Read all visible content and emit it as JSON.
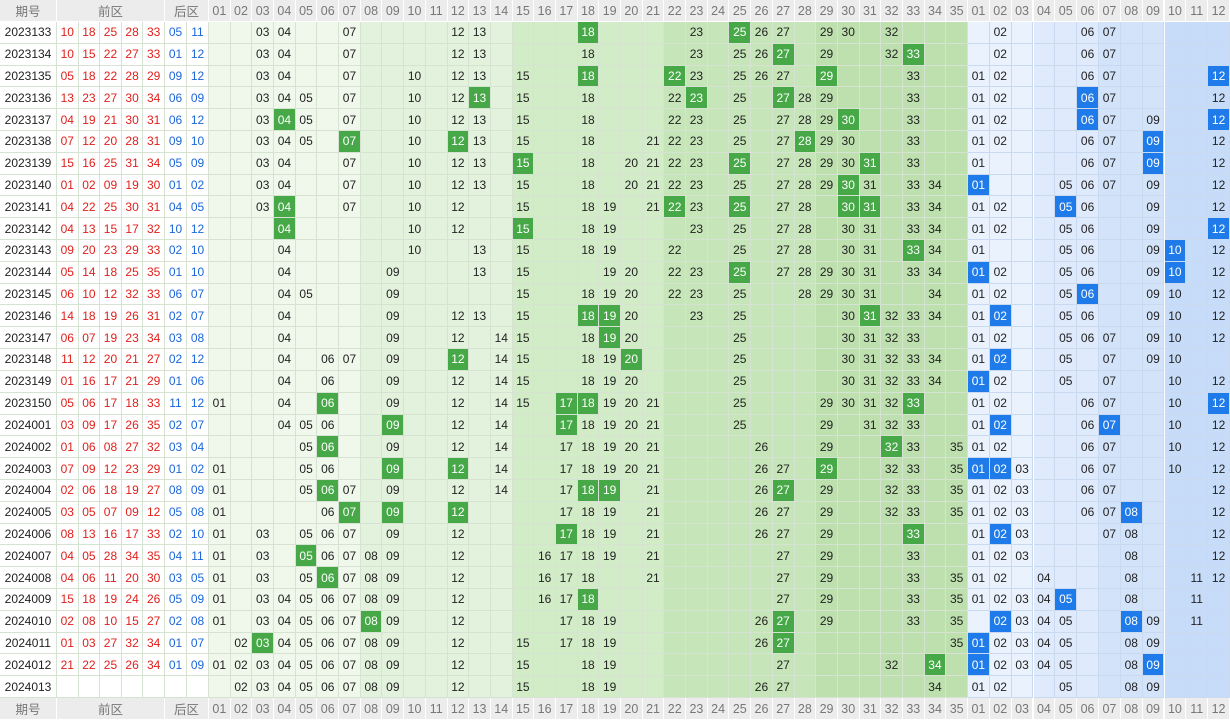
{
  "header": {
    "issue": "期号",
    "front": "前区",
    "back": "后区",
    "front_columns": [
      "01",
      "02",
      "03",
      "04",
      "05",
      "06",
      "07",
      "08",
      "09",
      "10",
      "11",
      "12",
      "13",
      "14",
      "15",
      "16",
      "17",
      "18",
      "19",
      "20",
      "21",
      "22",
      "23",
      "24",
      "25",
      "26",
      "27",
      "28",
      "29",
      "30",
      "31",
      "32",
      "33",
      "34",
      "35"
    ],
    "back_columns": [
      "01",
      "02",
      "03",
      "04",
      "05",
      "06",
      "07",
      "08",
      "09",
      "10",
      "11",
      "12"
    ]
  },
  "rows": [
    {
      "issue": "2023133",
      "front": [
        "10",
        "18",
        "25",
        "28",
        "33"
      ],
      "back": [
        "05",
        "11"
      ],
      "front_trend": [
        "03",
        "04",
        "07",
        "12",
        "13",
        "18",
        "23",
        "25",
        "26",
        "27",
        "29",
        "30",
        "32"
      ],
      "back_trend": [
        "02",
        "06",
        "07"
      ]
    },
    {
      "issue": "2023134",
      "front": [
        "10",
        "15",
        "22",
        "27",
        "33"
      ],
      "back": [
        "01",
        "12"
      ],
      "front_trend": [
        "03",
        "04",
        "07",
        "12",
        "13",
        "18",
        "23",
        "25",
        "26",
        "27",
        "29",
        "32",
        "33"
      ],
      "back_trend": [
        "02",
        "06",
        "07"
      ]
    },
    {
      "issue": "2023135",
      "front": [
        "05",
        "18",
        "22",
        "28",
        "29"
      ],
      "back": [
        "09",
        "12"
      ],
      "front_trend": [
        "03",
        "04",
        "07",
        "10",
        "12",
        "13",
        "15",
        "18",
        "22",
        "23",
        "25",
        "26",
        "27",
        "29",
        "33"
      ],
      "back_trend": [
        "01",
        "02",
        "06",
        "07",
        "12"
      ]
    },
    {
      "issue": "2023136",
      "front": [
        "13",
        "23",
        "27",
        "30",
        "34"
      ],
      "back": [
        "06",
        "09"
      ],
      "front_trend": [
        "03",
        "04",
        "05",
        "07",
        "10",
        "12",
        "13",
        "15",
        "18",
        "22",
        "23",
        "25",
        "27",
        "28",
        "29",
        "33"
      ],
      "back_trend": [
        "01",
        "02",
        "06",
        "07",
        "12"
      ]
    },
    {
      "issue": "2023137",
      "front": [
        "04",
        "19",
        "21",
        "30",
        "31"
      ],
      "back": [
        "06",
        "12"
      ],
      "front_trend": [
        "03",
        "04",
        "05",
        "07",
        "10",
        "12",
        "13",
        "15",
        "18",
        "22",
        "23",
        "25",
        "27",
        "28",
        "29",
        "30",
        "33"
      ],
      "back_trend": [
        "01",
        "02",
        "06",
        "07",
        "09",
        "12"
      ]
    },
    {
      "issue": "2023138",
      "front": [
        "07",
        "12",
        "20",
        "28",
        "31"
      ],
      "back": [
        "09",
        "10"
      ],
      "front_trend": [
        "03",
        "04",
        "05",
        "07",
        "10",
        "12",
        "13",
        "15",
        "18",
        "21",
        "22",
        "23",
        "25",
        "27",
        "28",
        "29",
        "30",
        "33"
      ],
      "back_trend": [
        "01",
        "02",
        "06",
        "07",
        "09",
        "12"
      ]
    },
    {
      "issue": "2023139",
      "front": [
        "15",
        "16",
        "25",
        "31",
        "34"
      ],
      "back": [
        "05",
        "09"
      ],
      "front_trend": [
        "03",
        "04",
        "07",
        "10",
        "12",
        "13",
        "15",
        "18",
        "20",
        "21",
        "22",
        "23",
        "25",
        "27",
        "28",
        "29",
        "30",
        "31",
        "33"
      ],
      "back_trend": [
        "01",
        "06",
        "07",
        "09",
        "12"
      ]
    },
    {
      "issue": "2023140",
      "front": [
        "01",
        "02",
        "09",
        "19",
        "30"
      ],
      "back": [
        "01",
        "02"
      ],
      "front_trend": [
        "03",
        "04",
        "07",
        "10",
        "12",
        "13",
        "15",
        "18",
        "20",
        "21",
        "22",
        "23",
        "25",
        "27",
        "28",
        "29",
        "30",
        "31",
        "33",
        "34"
      ],
      "back_trend": [
        "01",
        "05",
        "06",
        "07",
        "09",
        "12"
      ]
    },
    {
      "issue": "2023141",
      "front": [
        "04",
        "22",
        "25",
        "30",
        "31"
      ],
      "back": [
        "04",
        "05"
      ],
      "front_trend": [
        "03",
        "04",
        "07",
        "10",
        "12",
        "15",
        "18",
        "19",
        "21",
        "22",
        "23",
        "25",
        "27",
        "28",
        "30",
        "31",
        "33",
        "34"
      ],
      "back_trend": [
        "01",
        "02",
        "05",
        "06",
        "09",
        "12"
      ]
    },
    {
      "issue": "2023142",
      "front": [
        "04",
        "13",
        "15",
        "17",
        "32"
      ],
      "back": [
        "10",
        "12"
      ],
      "front_trend": [
        "04",
        "10",
        "12",
        "15",
        "18",
        "19",
        "23",
        "25",
        "27",
        "28",
        "30",
        "31",
        "33",
        "34"
      ],
      "back_trend": [
        "01",
        "02",
        "05",
        "06",
        "09",
        "12"
      ]
    },
    {
      "issue": "2023143",
      "front": [
        "09",
        "20",
        "23",
        "29",
        "33"
      ],
      "back": [
        "02",
        "10"
      ],
      "front_trend": [
        "04",
        "10",
        "13",
        "15",
        "18",
        "19",
        "22",
        "25",
        "27",
        "28",
        "30",
        "31",
        "33",
        "34"
      ],
      "back_trend": [
        "01",
        "05",
        "06",
        "09",
        "10",
        "12"
      ]
    },
    {
      "issue": "2023144",
      "front": [
        "05",
        "14",
        "18",
        "25",
        "35"
      ],
      "back": [
        "01",
        "10"
      ],
      "front_trend": [
        "04",
        "09",
        "13",
        "15",
        "19",
        "20",
        "22",
        "23",
        "25",
        "27",
        "28",
        "29",
        "30",
        "31",
        "33",
        "34"
      ],
      "back_trend": [
        "01",
        "02",
        "05",
        "06",
        "09",
        "10",
        "12"
      ]
    },
    {
      "issue": "2023145",
      "front": [
        "06",
        "10",
        "12",
        "32",
        "33"
      ],
      "back": [
        "06",
        "07"
      ],
      "front_trend": [
        "04",
        "05",
        "09",
        "15",
        "18",
        "19",
        "20",
        "22",
        "23",
        "25",
        "28",
        "29",
        "30",
        "31",
        "34"
      ],
      "back_trend": [
        "01",
        "02",
        "05",
        "06",
        "09",
        "10",
        "12"
      ]
    },
    {
      "issue": "2023146",
      "front": [
        "14",
        "18",
        "19",
        "26",
        "31"
      ],
      "back": [
        "02",
        "07"
      ],
      "front_trend": [
        "04",
        "09",
        "12",
        "13",
        "15",
        "18",
        "19",
        "20",
        "23",
        "25",
        "30",
        "31",
        "32",
        "33",
        "34"
      ],
      "back_trend": [
        "01",
        "02",
        "05",
        "06",
        "09",
        "10",
        "12"
      ]
    },
    {
      "issue": "2023147",
      "front": [
        "06",
        "07",
        "19",
        "23",
        "34"
      ],
      "back": [
        "03",
        "08"
      ],
      "front_trend": [
        "04",
        "09",
        "12",
        "14",
        "15",
        "18",
        "19",
        "20",
        "25",
        "30",
        "31",
        "32",
        "33"
      ],
      "back_trend": [
        "01",
        "02",
        "05",
        "06",
        "07",
        "09",
        "10",
        "12"
      ]
    },
    {
      "issue": "2023148",
      "front": [
        "11",
        "12",
        "20",
        "21",
        "27"
      ],
      "back": [
        "02",
        "12"
      ],
      "front_trend": [
        "04",
        "06",
        "07",
        "09",
        "12",
        "14",
        "15",
        "18",
        "19",
        "20",
        "25",
        "30",
        "31",
        "32",
        "33",
        "34"
      ],
      "back_trend": [
        "01",
        "02",
        "05",
        "07",
        "09",
        "10"
      ]
    },
    {
      "issue": "2023149",
      "front": [
        "01",
        "16",
        "17",
        "21",
        "29"
      ],
      "back": [
        "01",
        "06"
      ],
      "front_trend": [
        "04",
        "06",
        "09",
        "12",
        "14",
        "15",
        "18",
        "19",
        "20",
        "25",
        "30",
        "31",
        "32",
        "33",
        "34"
      ],
      "back_trend": [
        "01",
        "02",
        "05",
        "07",
        "10",
        "12"
      ]
    },
    {
      "issue": "2023150",
      "front": [
        "05",
        "06",
        "17",
        "18",
        "33"
      ],
      "back": [
        "11",
        "12"
      ],
      "front_trend": [
        "01",
        "04",
        "06",
        "09",
        "12",
        "14",
        "15",
        "17",
        "18",
        "19",
        "20",
        "21",
        "25",
        "29",
        "30",
        "31",
        "32",
        "33"
      ],
      "back_trend": [
        "01",
        "02",
        "06",
        "07",
        "10",
        "12"
      ]
    },
    {
      "issue": "2024001",
      "front": [
        "03",
        "09",
        "17",
        "26",
        "35"
      ],
      "back": [
        "02",
        "07"
      ],
      "front_trend": [
        "04",
        "05",
        "06",
        "09",
        "12",
        "14",
        "17",
        "18",
        "19",
        "20",
        "21",
        "25",
        "29",
        "31",
        "32",
        "33"
      ],
      "back_trend": [
        "01",
        "02",
        "06",
        "07",
        "10",
        "12"
      ]
    },
    {
      "issue": "2024002",
      "front": [
        "01",
        "06",
        "08",
        "27",
        "32"
      ],
      "back": [
        "03",
        "04"
      ],
      "front_trend": [
        "05",
        "06",
        "09",
        "12",
        "14",
        "17",
        "18",
        "19",
        "20",
        "21",
        "26",
        "29",
        "32",
        "33",
        "35"
      ],
      "back_trend": [
        "01",
        "02",
        "06",
        "07",
        "10",
        "12"
      ]
    },
    {
      "issue": "2024003",
      "front": [
        "07",
        "09",
        "12",
        "23",
        "29"
      ],
      "back": [
        "01",
        "02"
      ],
      "front_trend": [
        "01",
        "05",
        "06",
        "09",
        "12",
        "14",
        "17",
        "18",
        "19",
        "20",
        "21",
        "26",
        "27",
        "29",
        "32",
        "33",
        "35"
      ],
      "back_trend": [
        "01",
        "02",
        "03",
        "06",
        "07",
        "10",
        "12"
      ]
    },
    {
      "issue": "2024004",
      "front": [
        "02",
        "06",
        "18",
        "19",
        "27"
      ],
      "back": [
        "08",
        "09"
      ],
      "front_trend": [
        "01",
        "05",
        "06",
        "07",
        "09",
        "12",
        "14",
        "17",
        "18",
        "19",
        "21",
        "26",
        "27",
        "29",
        "32",
        "33",
        "35"
      ],
      "back_trend": [
        "01",
        "02",
        "03",
        "06",
        "07",
        "12"
      ]
    },
    {
      "issue": "2024005",
      "front": [
        "03",
        "05",
        "07",
        "09",
        "12"
      ],
      "back": [
        "05",
        "08"
      ],
      "front_trend": [
        "01",
        "06",
        "07",
        "09",
        "12",
        "17",
        "18",
        "19",
        "21",
        "26",
        "27",
        "29",
        "32",
        "33",
        "35"
      ],
      "back_trend": [
        "01",
        "02",
        "03",
        "06",
        "07",
        "08",
        "12"
      ]
    },
    {
      "issue": "2024006",
      "front": [
        "08",
        "13",
        "16",
        "17",
        "33"
      ],
      "back": [
        "02",
        "10"
      ],
      "front_trend": [
        "01",
        "03",
        "05",
        "06",
        "07",
        "09",
        "12",
        "17",
        "18",
        "19",
        "21",
        "26",
        "27",
        "29",
        "33"
      ],
      "back_trend": [
        "01",
        "02",
        "03",
        "07",
        "08",
        "12"
      ]
    },
    {
      "issue": "2024007",
      "front": [
        "04",
        "05",
        "28",
        "34",
        "35"
      ],
      "back": [
        "04",
        "11"
      ],
      "front_trend": [
        "01",
        "03",
        "05",
        "06",
        "07",
        "08",
        "09",
        "12",
        "16",
        "17",
        "18",
        "19",
        "21",
        "27",
        "29",
        "33"
      ],
      "back_trend": [
        "01",
        "02",
        "03",
        "08",
        "12"
      ]
    },
    {
      "issue": "2024008",
      "front": [
        "04",
        "06",
        "11",
        "20",
        "30"
      ],
      "back": [
        "03",
        "05"
      ],
      "front_trend": [
        "01",
        "03",
        "05",
        "06",
        "07",
        "08",
        "09",
        "12",
        "16",
        "17",
        "18",
        "21",
        "27",
        "29",
        "33",
        "35"
      ],
      "back_trend": [
        "01",
        "02",
        "04",
        "08",
        "11",
        "12"
      ]
    },
    {
      "issue": "2024009",
      "front": [
        "15",
        "18",
        "19",
        "24",
        "26"
      ],
      "back": [
        "05",
        "09"
      ],
      "front_trend": [
        "01",
        "03",
        "04",
        "05",
        "06",
        "07",
        "08",
        "09",
        "12",
        "16",
        "17",
        "18",
        "27",
        "29",
        "33",
        "35"
      ],
      "back_trend": [
        "01",
        "02",
        "03",
        "04",
        "05",
        "08",
        "11"
      ]
    },
    {
      "issue": "2024010",
      "front": [
        "02",
        "08",
        "10",
        "15",
        "27"
      ],
      "back": [
        "02",
        "08"
      ],
      "front_trend": [
        "01",
        "03",
        "04",
        "05",
        "06",
        "07",
        "08",
        "09",
        "12",
        "17",
        "18",
        "19",
        "26",
        "27",
        "29",
        "33",
        "35"
      ],
      "back_trend": [
        "02",
        "03",
        "04",
        "05",
        "08",
        "09",
        "11"
      ]
    },
    {
      "issue": "2024011",
      "front": [
        "01",
        "03",
        "27",
        "32",
        "34"
      ],
      "back": [
        "01",
        "07"
      ],
      "front_trend": [
        "02",
        "03",
        "04",
        "05",
        "06",
        "07",
        "08",
        "09",
        "12",
        "15",
        "17",
        "18",
        "19",
        "26",
        "27",
        "35"
      ],
      "back_trend": [
        "01",
        "02",
        "03",
        "04",
        "05",
        "08",
        "09"
      ]
    },
    {
      "issue": "2024012",
      "front": [
        "21",
        "22",
        "25",
        "26",
        "34"
      ],
      "back": [
        "01",
        "09"
      ],
      "front_trend": [
        "01",
        "02",
        "03",
        "04",
        "05",
        "06",
        "07",
        "08",
        "09",
        "12",
        "15",
        "18",
        "19",
        "27",
        "32",
        "34"
      ],
      "back_trend": [
        "01",
        "02",
        "03",
        "04",
        "05",
        "08",
        "09"
      ]
    },
    {
      "issue": "2024013",
      "front": [],
      "back": [],
      "front_trend": [
        "02",
        "03",
        "04",
        "05",
        "06",
        "07",
        "08",
        "09",
        "12",
        "15",
        "18",
        "19",
        "26",
        "27",
        "34"
      ],
      "back_trend": [
        "01",
        "02",
        "05",
        "08",
        "09"
      ]
    }
  ]
}
